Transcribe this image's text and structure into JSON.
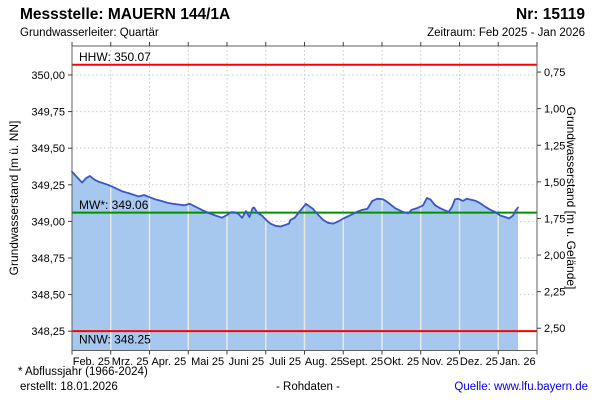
{
  "header": {
    "title": "Messstelle: MAUERN 144/1A",
    "station_number": "Nr: 15119",
    "aquifer": "Grundwasserleiter: Quartär",
    "period": "Zeitraum: Feb 2025 - Jan 2026"
  },
  "footer": {
    "note": "* Abflussjahr (1966-2024)",
    "created": "erstellt: 18.01.2026",
    "data_type": "- Rohdaten -",
    "source": "Quelle: www.lfu.bayern.de"
  },
  "chart_data": {
    "type": "area",
    "x_axis": {
      "categories": [
        "Feb. 25",
        "Mrz. 25",
        "Apr. 25",
        "Mai 25",
        "Juni 25",
        "Juli 25",
        "Aug. 25",
        "Sept. 25",
        "Okt. 25",
        "Nov. 25",
        "Dez. 25",
        "Jan. 26"
      ],
      "range_months": [
        0,
        12
      ]
    },
    "y_axis_left": {
      "label": "Grundwasserstand [m ü. NN]",
      "ticks": [
        "350,00",
        "349,75",
        "349,50",
        "349,25",
        "349,00",
        "348,75",
        "348,50",
        "348,25"
      ],
      "tick_values": [
        350.0,
        349.75,
        349.5,
        349.25,
        349.0,
        348.75,
        348.5,
        348.25
      ],
      "range": [
        348.118,
        350.198
      ]
    },
    "y_axis_right": {
      "label": "Grundwasserstand [m u. Gelände]",
      "ticks": [
        "0,75",
        "1,00",
        "1,25",
        "1,50",
        "1,75",
        "2,00",
        "2,25",
        "2,50"
      ],
      "tick_values": [
        0.75,
        1.0,
        1.25,
        1.5,
        1.75,
        2.0,
        2.25,
        2.5
      ],
      "ground_elevation": 350.77
    },
    "reference_lines": [
      {
        "name": "HHW",
        "label": "HHW: 350.07",
        "value": 350.07,
        "color": "#FF0000",
        "label_side": "above"
      },
      {
        "name": "MW",
        "label": "MW*: 349.06",
        "value": 349.06,
        "color": "#009000",
        "label_side": "above"
      },
      {
        "name": "NNW",
        "label": "NNW: 348.25",
        "value": 348.25,
        "color": "#FF0000",
        "label_side": "below"
      }
    ],
    "series": [
      {
        "name": "Grundwasserstand Rohdaten",
        "points": [
          [
            0.0,
            349.34
          ],
          [
            0.1,
            349.31
          ],
          [
            0.26,
            349.265
          ],
          [
            0.36,
            349.295
          ],
          [
            0.46,
            349.31
          ],
          [
            0.58,
            349.285
          ],
          [
            0.7,
            349.27
          ],
          [
            0.93,
            349.25
          ],
          [
            1.1,
            349.23
          ],
          [
            1.3,
            349.205
          ],
          [
            1.5,
            349.19
          ],
          [
            1.72,
            349.17
          ],
          [
            1.86,
            349.18
          ],
          [
            2.0,
            349.165
          ],
          [
            2.15,
            349.15
          ],
          [
            2.3,
            349.14
          ],
          [
            2.45,
            349.128
          ],
          [
            2.6,
            349.12
          ],
          [
            2.75,
            349.115
          ],
          [
            2.9,
            349.11
          ],
          [
            3.04,
            349.12
          ],
          [
            3.15,
            349.105
          ],
          [
            3.3,
            349.085
          ],
          [
            3.5,
            349.06
          ],
          [
            3.7,
            349.04
          ],
          [
            3.87,
            349.025
          ],
          [
            4.01,
            349.045
          ],
          [
            4.1,
            349.063
          ],
          [
            4.2,
            349.062
          ],
          [
            4.3,
            349.05
          ],
          [
            4.39,
            349.025
          ],
          [
            4.49,
            349.07
          ],
          [
            4.58,
            349.03
          ],
          [
            4.66,
            349.09
          ],
          [
            4.7,
            349.095
          ],
          [
            4.78,
            349.06
          ],
          [
            4.9,
            349.04
          ],
          [
            5.01,
            349.01
          ],
          [
            5.12,
            348.985
          ],
          [
            5.25,
            348.97
          ],
          [
            5.38,
            348.965
          ],
          [
            5.5,
            348.975
          ],
          [
            5.6,
            348.985
          ],
          [
            5.64,
            349.01
          ],
          [
            5.75,
            349.025
          ],
          [
            5.88,
            349.07
          ],
          [
            6.04,
            349.12
          ],
          [
            6.22,
            349.085
          ],
          [
            6.35,
            349.045
          ],
          [
            6.48,
            349.01
          ],
          [
            6.61,
            348.99
          ],
          [
            6.74,
            348.985
          ],
          [
            6.87,
            349.0
          ],
          [
            7.0,
            349.02
          ],
          [
            7.17,
            349.04
          ],
          [
            7.35,
            349.065
          ],
          [
            7.5,
            349.08
          ],
          [
            7.62,
            349.085
          ],
          [
            7.75,
            349.14
          ],
          [
            7.88,
            349.155
          ],
          [
            8.03,
            349.15
          ],
          [
            8.15,
            349.13
          ],
          [
            8.34,
            349.09
          ],
          [
            8.54,
            349.065
          ],
          [
            8.67,
            349.055
          ],
          [
            8.77,
            349.08
          ],
          [
            8.9,
            349.09
          ],
          [
            9.06,
            349.11
          ],
          [
            9.16,
            349.16
          ],
          [
            9.25,
            349.15
          ],
          [
            9.37,
            349.11
          ],
          [
            9.5,
            349.09
          ],
          [
            9.63,
            349.075
          ],
          [
            9.72,
            349.065
          ],
          [
            9.81,
            349.1
          ],
          [
            9.88,
            349.15
          ],
          [
            9.96,
            349.155
          ],
          [
            10.09,
            349.14
          ],
          [
            10.19,
            349.155
          ],
          [
            10.3,
            349.148
          ],
          [
            10.42,
            349.14
          ],
          [
            10.53,
            349.125
          ],
          [
            10.66,
            349.1
          ],
          [
            10.79,
            349.08
          ],
          [
            10.92,
            349.065
          ],
          [
            11.05,
            349.04
          ],
          [
            11.18,
            349.03
          ],
          [
            11.28,
            349.02
          ],
          [
            11.38,
            349.04
          ],
          [
            11.45,
            349.075
          ],
          [
            11.51,
            349.095
          ]
        ]
      }
    ],
    "colors": {
      "area_fill": "#A6C7EE",
      "line": "#3A57C8",
      "grid": "#C9C9C9",
      "area_divider": "#E8E8E2",
      "frame": "#606060",
      "tick": "#404040",
      "hhw_nnw": "#FF0000",
      "mw": "#009000",
      "source_link": "#0000EE"
    }
  }
}
